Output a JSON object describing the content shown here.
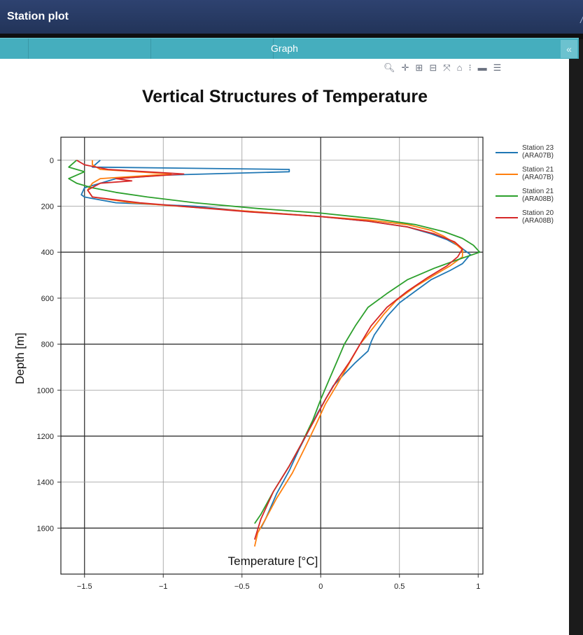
{
  "window": {
    "title": "Station plot"
  },
  "tab": {
    "label": "Graph"
  },
  "toolbar_icons": [
    "zoom-icon",
    "pan-icon",
    "zoom-in-icon",
    "zoom-out-icon",
    "autoscale-icon",
    "home-icon",
    "spike-lines-icon",
    "hover-closest-icon",
    "hover-compare-icon"
  ],
  "colors": {
    "titlebar": "#2b3e6b",
    "tab": "#45aebe",
    "series": [
      "#1f77b4",
      "#ff7f0e",
      "#2ca02c",
      "#d62728"
    ]
  },
  "chart_data": {
    "type": "line",
    "title": "Vertical Structures of Temperature",
    "xlabel": "Temperature [°C]",
    "ylabel": "Depth [m]",
    "xlim": [
      -1.65,
      1.03
    ],
    "ylim": [
      1800,
      -100
    ],
    "y_inverted": true,
    "grid": true,
    "legend_position": "right",
    "x_ticks": [
      "−1.5",
      "−1",
      "−0.5",
      "0",
      "0.5",
      "1"
    ],
    "x_tick_values": [
      -1.5,
      -1,
      -0.5,
      0,
      0.5,
      1
    ],
    "y_ticks": [
      "0",
      "200",
      "400",
      "600",
      "800",
      "1000",
      "1200",
      "1400",
      "1600"
    ],
    "y_tick_values": [
      0,
      200,
      400,
      600,
      800,
      1000,
      1200,
      1400,
      1600
    ],
    "series": [
      {
        "name": "Station 23\n(ARA07B)",
        "color": "#1f77b4",
        "points": [
          [
            -1.4,
            0
          ],
          [
            -1.45,
            30
          ],
          [
            -0.2,
            40
          ],
          [
            -0.2,
            50
          ],
          [
            -1.0,
            65
          ],
          [
            -1.3,
            80
          ],
          [
            -1.4,
            100
          ],
          [
            -1.5,
            120
          ],
          [
            -1.52,
            150
          ],
          [
            -1.5,
            160
          ],
          [
            -1.3,
            185
          ],
          [
            -0.8,
            200
          ],
          [
            -0.5,
            220
          ],
          [
            0,
            245
          ],
          [
            0.3,
            265
          ],
          [
            0.55,
            290
          ],
          [
            0.7,
            320
          ],
          [
            0.8,
            345
          ],
          [
            0.88,
            375
          ],
          [
            0.95,
            410
          ],
          [
            0.9,
            450
          ],
          [
            0.82,
            480
          ],
          [
            0.7,
            520
          ],
          [
            0.6,
            570
          ],
          [
            0.5,
            620
          ],
          [
            0.42,
            680
          ],
          [
            0.36,
            740
          ],
          [
            0.34,
            760
          ],
          [
            0.32,
            790
          ],
          [
            0.3,
            830
          ],
          [
            0.22,
            880
          ],
          [
            0.15,
            930
          ],
          [
            0.08,
            980
          ],
          [
            0.03,
            1040
          ],
          [
            -0.02,
            1100
          ],
          [
            -0.08,
            1180
          ],
          [
            -0.14,
            1260
          ],
          [
            -0.2,
            1350
          ],
          [
            -0.28,
            1450
          ],
          [
            -0.35,
            1560
          ],
          [
            -0.38,
            1600
          ]
        ]
      },
      {
        "name": "Station 21\n(ARA07B)",
        "color": "#ff7f0e",
        "points": [
          [
            -1.45,
            0
          ],
          [
            -1.45,
            20
          ],
          [
            -1.4,
            40
          ],
          [
            -0.95,
            60
          ],
          [
            -1.4,
            80
          ],
          [
            -1.45,
            100
          ],
          [
            -1.48,
            130
          ],
          [
            -1.45,
            160
          ],
          [
            -1.2,
            185
          ],
          [
            -0.8,
            205
          ],
          [
            -0.4,
            225
          ],
          [
            0,
            245
          ],
          [
            0.3,
            260
          ],
          [
            0.55,
            280
          ],
          [
            0.7,
            305
          ],
          [
            0.78,
            330
          ],
          [
            0.85,
            360
          ],
          [
            0.9,
            390
          ],
          [
            0.9,
            420
          ],
          [
            0.82,
            460
          ],
          [
            0.72,
            500
          ],
          [
            0.6,
            550
          ],
          [
            0.48,
            610
          ],
          [
            0.4,
            670
          ],
          [
            0.32,
            740
          ],
          [
            0.25,
            800
          ],
          [
            0.2,
            860
          ],
          [
            0.15,
            920
          ],
          [
            0.1,
            980
          ],
          [
            0.03,
            1060
          ],
          [
            -0.03,
            1150
          ],
          [
            -0.1,
            1250
          ],
          [
            -0.18,
            1360
          ],
          [
            -0.28,
            1470
          ],
          [
            -0.35,
            1560
          ],
          [
            -0.4,
            1620
          ],
          [
            -0.42,
            1680
          ]
        ]
      },
      {
        "name": "Station 21\n(ARA08B)",
        "color": "#2ca02c",
        "points": [
          [
            -1.55,
            0
          ],
          [
            -1.6,
            30
          ],
          [
            -1.5,
            50
          ],
          [
            -1.6,
            80
          ],
          [
            -1.55,
            100
          ],
          [
            -1.45,
            120
          ],
          [
            -1.3,
            140
          ],
          [
            -1.1,
            160
          ],
          [
            -0.8,
            185
          ],
          [
            -0.4,
            210
          ],
          [
            0,
            230
          ],
          [
            0.35,
            255
          ],
          [
            0.6,
            280
          ],
          [
            0.78,
            310
          ],
          [
            0.9,
            340
          ],
          [
            0.97,
            370
          ],
          [
            1.01,
            400
          ],
          [
            0.88,
            430
          ],
          [
            0.72,
            470
          ],
          [
            0.55,
            520
          ],
          [
            0.42,
            580
          ],
          [
            0.3,
            640
          ],
          [
            0.22,
            720
          ],
          [
            0.15,
            800
          ],
          [
            0.1,
            880
          ],
          [
            0.05,
            960
          ],
          [
            0,
            1040
          ],
          [
            -0.05,
            1130
          ],
          [
            -0.12,
            1230
          ],
          [
            -0.2,
            1330
          ],
          [
            -0.3,
            1440
          ],
          [
            -0.38,
            1540
          ],
          [
            -0.42,
            1580
          ]
        ]
      },
      {
        "name": "Station 20\n(ARA08B)",
        "color": "#d62728",
        "points": [
          [
            -1.55,
            0
          ],
          [
            -1.5,
            20
          ],
          [
            -1.35,
            40
          ],
          [
            -0.87,
            60
          ],
          [
            -1.3,
            80
          ],
          [
            -1.2,
            90
          ],
          [
            -1.4,
            100
          ],
          [
            -1.48,
            130
          ],
          [
            -1.45,
            160
          ],
          [
            -1.15,
            185
          ],
          [
            -0.8,
            205
          ],
          [
            -0.45,
            225
          ],
          [
            0,
            245
          ],
          [
            0.3,
            265
          ],
          [
            0.55,
            290
          ],
          [
            0.72,
            320
          ],
          [
            0.85,
            355
          ],
          [
            0.9,
            385
          ],
          [
            0.87,
            420
          ],
          [
            0.8,
            460
          ],
          [
            0.68,
            510
          ],
          [
            0.55,
            570
          ],
          [
            0.42,
            640
          ],
          [
            0.32,
            720
          ],
          [
            0.25,
            800
          ],
          [
            0.18,
            880
          ],
          [
            0.1,
            960
          ],
          [
            0.03,
            1040
          ],
          [
            -0.04,
            1130
          ],
          [
            -0.12,
            1230
          ],
          [
            -0.2,
            1330
          ],
          [
            -0.3,
            1440
          ],
          [
            -0.38,
            1560
          ],
          [
            -0.42,
            1650
          ]
        ]
      }
    ]
  }
}
